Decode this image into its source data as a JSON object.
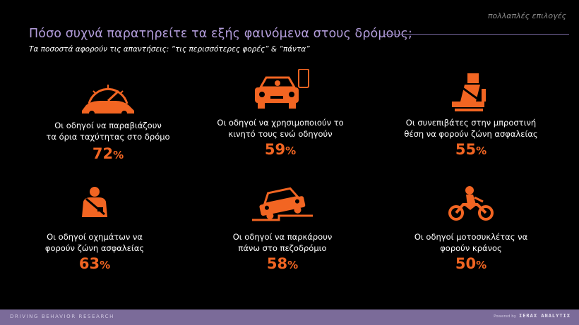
{
  "header": {
    "tag": "πολλαπλές επιλογές",
    "title": "Πόσο συχνά παρατηρείτε τα εξής φαινόμενα στους δρόμους;",
    "subtitle": "Τα ποσοστά αφορούν τις απαντήσεις: “τις περισσότερες φορές” & “πάντα”"
  },
  "accent_color": "#f26522",
  "title_color": "#b39ddb",
  "cards": [
    {
      "icon": "speedometer-car-icon",
      "line1": "Οι οδηγοί να παραβιάζουν",
      "line2": "τα όρια ταχύτητας στο δρόμο",
      "value": "72",
      "sym": "%"
    },
    {
      "icon": "car-phone-icon",
      "line1": "Οι οδηγοί να χρησιμοποιούν το",
      "line2": "κινητό τους ενώ οδηγούν",
      "value": "59",
      "sym": "%"
    },
    {
      "icon": "seatbelt-seat-icon",
      "line1": "Οι συνεπιβάτες στην μπροστινή",
      "line2": "θέση να φορούν ζώνη ασφαλείας",
      "value": "55",
      "sym": "%"
    },
    {
      "icon": "person-seatbelt-icon",
      "line1": "Οι οδηγοί οχημάτων να",
      "line2": "φορούν ζώνη ασφαλείας",
      "value": "63",
      "sym": "%"
    },
    {
      "icon": "car-on-sidewalk-icon",
      "line1": "Οι οδηγοί να παρκάρουν",
      "line2": "πάνω στο πεζοδρόμιο",
      "value": "58",
      "sym": "%"
    },
    {
      "icon": "motorcycle-helmet-icon",
      "line1": "Οι οδηγοί μοτοσυκλέτας να",
      "line2": "φορούν κράνος",
      "value": "50",
      "sym": "%"
    }
  ],
  "footer": {
    "left": "DRIVING BEHAVIOR RESEARCH",
    "by": "Powered by",
    "brand": "IERAX ANALYTIX"
  }
}
